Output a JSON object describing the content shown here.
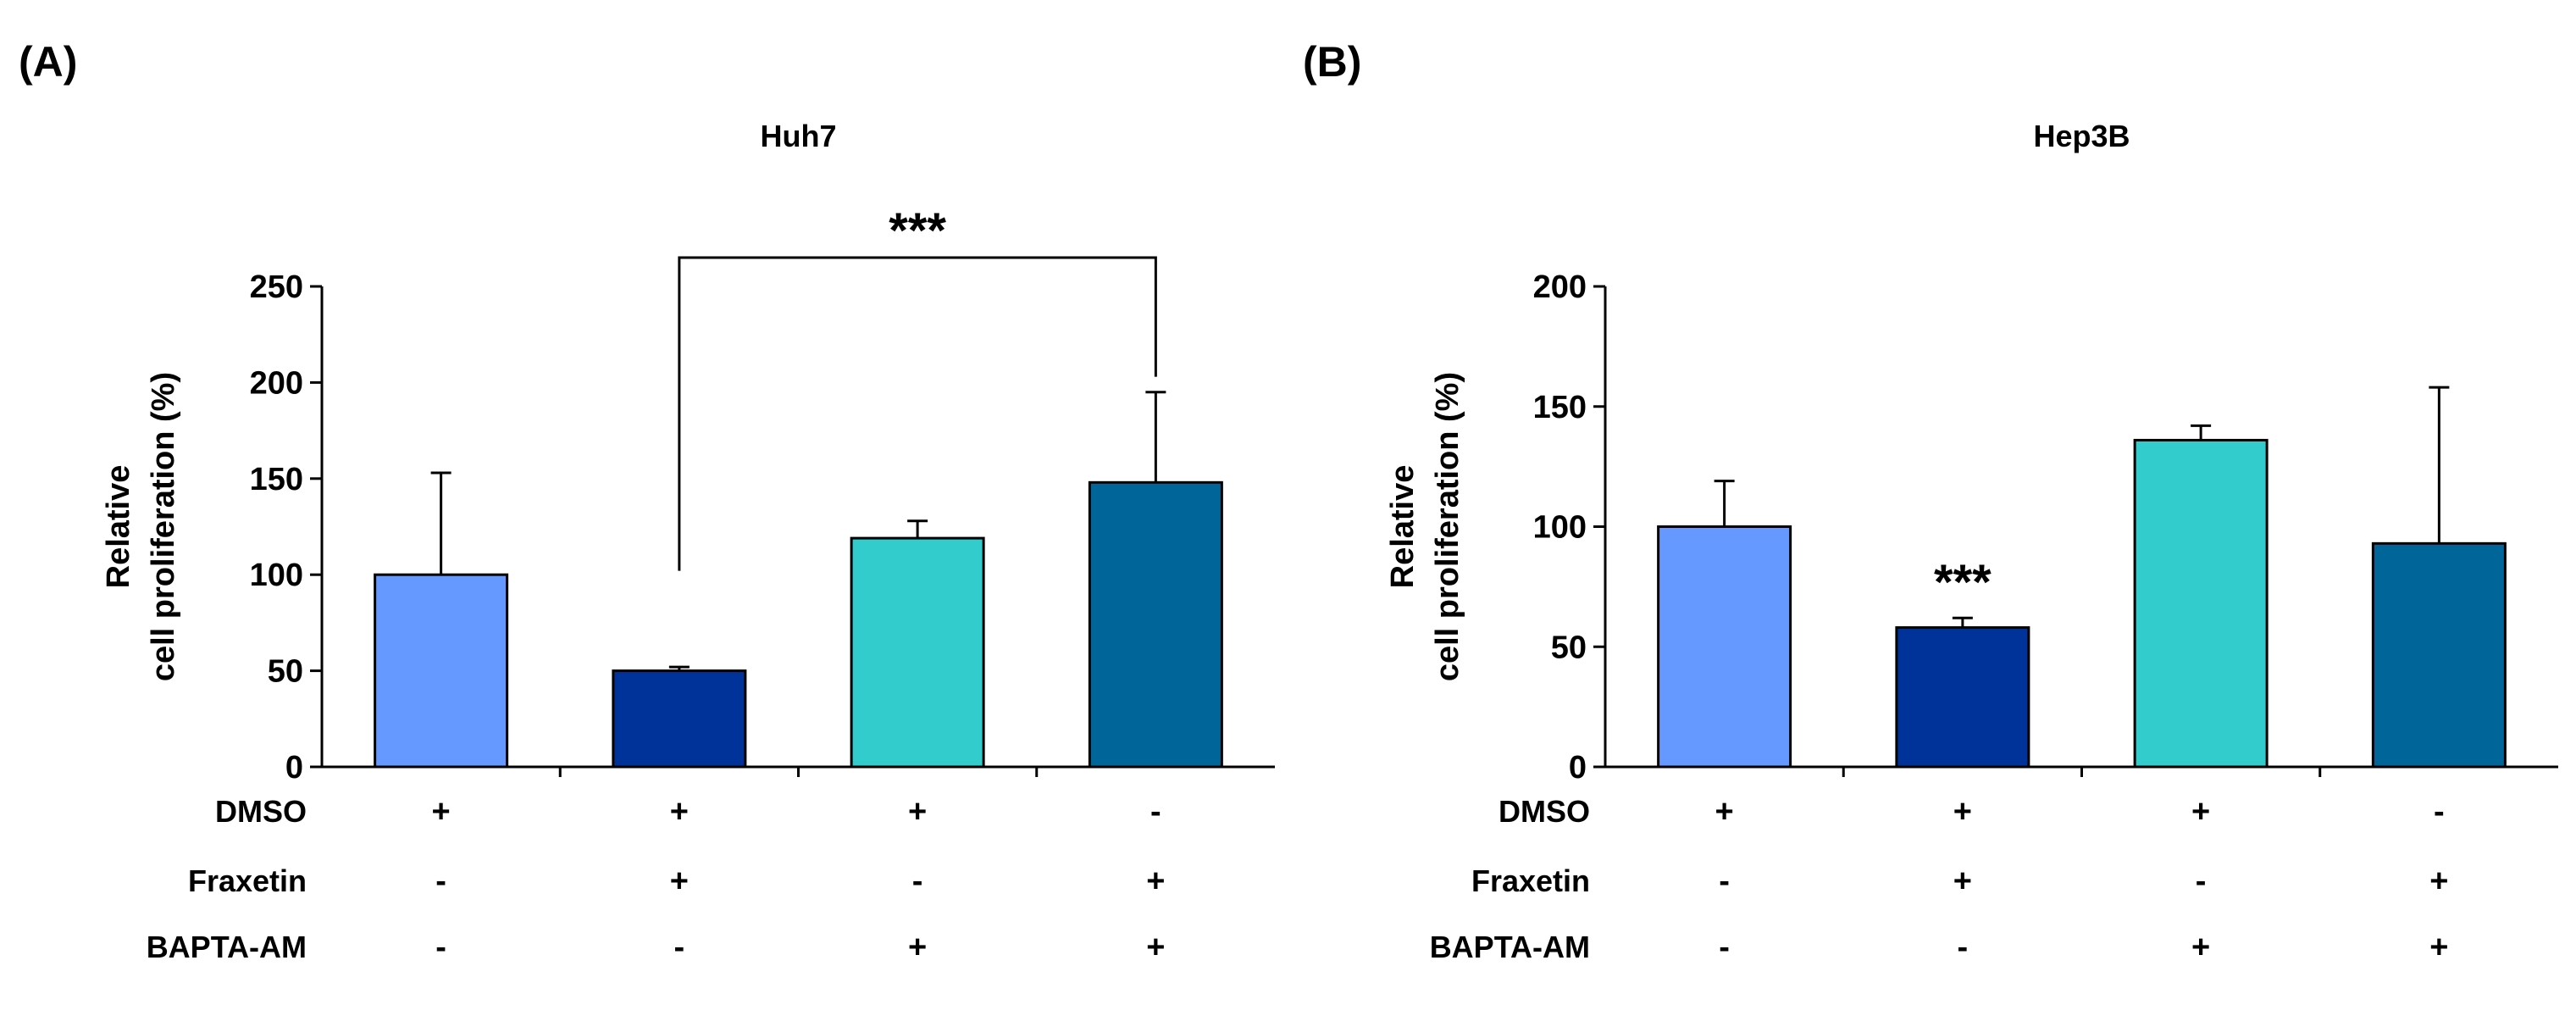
{
  "panels": [
    {
      "label": "(A)"
    },
    {
      "label": "(B)"
    }
  ],
  "chart_data": [
    {
      "type": "bar",
      "title": "Huh7",
      "ylabel_lines": [
        "Relative",
        "cell proliferation (%)"
      ],
      "ylim": [
        0,
        250
      ],
      "yticks": [
        0,
        50,
        100,
        150,
        200,
        250
      ],
      "categories": [
        "DMSO+Fraxetin-BAPTA-AM-",
        "DMSO+Fraxetin+BAPTA-AM-",
        "DMSO+Fraxetin-BAPTA-AM+",
        "DMSO-Fraxetin+BAPTA-AM+"
      ],
      "values": [
        100,
        50,
        119,
        148
      ],
      "errors": [
        53,
        2,
        9,
        47
      ],
      "colors": [
        "#6699ff",
        "#003399",
        "#33cccc",
        "#006699"
      ],
      "treatment_rows": [
        {
          "label": "DMSO",
          "cells": [
            "+",
            "+",
            "+",
            "-"
          ]
        },
        {
          "label": "Fraxetin",
          "cells": [
            "-",
            "+",
            "-",
            "+"
          ]
        },
        {
          "label": "BAPTA-AM",
          "cells": [
            "-",
            "-",
            "+",
            "+"
          ]
        }
      ],
      "annotations": [
        {
          "text": "***",
          "type": "bracket",
          "from_index": 1,
          "to_index": 3,
          "bracket_y": 265,
          "left_end": 102,
          "right_end": 203
        }
      ]
    },
    {
      "type": "bar",
      "title": "Hep3B",
      "ylabel_lines": [
        "Relative",
        "cell proliferation (%)"
      ],
      "ylim": [
        0,
        200
      ],
      "yticks": [
        0,
        50,
        100,
        150,
        200
      ],
      "categories": [
        "DMSO+Fraxetin-BAPTA-AM-",
        "DMSO+Fraxetin+BAPTA-AM-",
        "DMSO+Fraxetin-BAPTA-AM+",
        "DMSO-Fraxetin+BAPTA-AM+"
      ],
      "values": [
        100,
        58,
        136,
        93
      ],
      "errors": [
        19,
        4,
        6,
        65
      ],
      "colors": [
        "#6699ff",
        "#003399",
        "#33cccc",
        "#006699"
      ],
      "treatment_rows": [
        {
          "label": "DMSO",
          "cells": [
            "+",
            "+",
            "+",
            "-"
          ]
        },
        {
          "label": "Fraxetin",
          "cells": [
            "-",
            "+",
            "-",
            "+"
          ]
        },
        {
          "label": "BAPTA-AM",
          "cells": [
            "-",
            "-",
            "+",
            "+"
          ]
        }
      ],
      "annotations": [
        {
          "text": "***",
          "type": "above_bar",
          "index": 1
        }
      ]
    }
  ]
}
